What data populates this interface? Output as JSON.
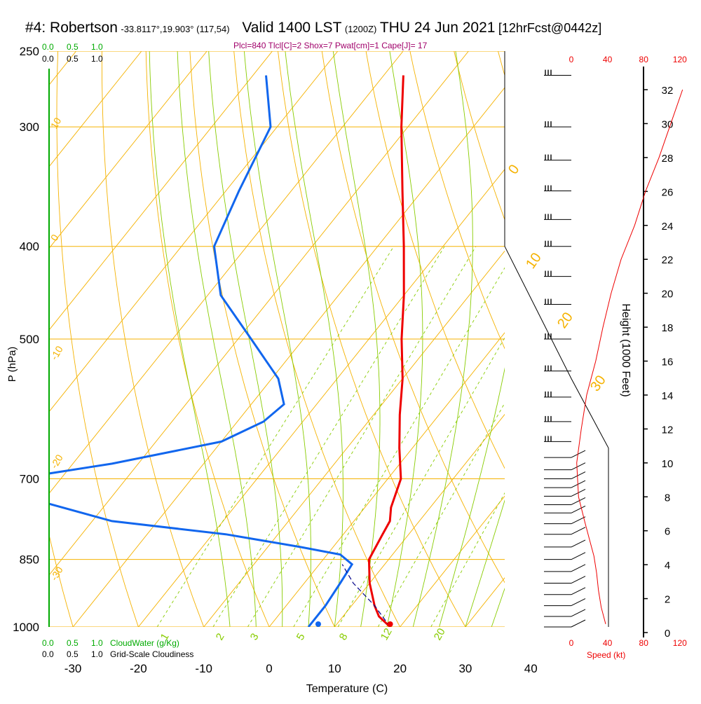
{
  "title": {
    "station": "#4: Robertson",
    "coords": "-33.8117°,19.903° (117,54)",
    "valid": "Valid 1400 LST",
    "utc": "(1200Z)",
    "date": "THU 24 Jun 2021",
    "forecast": "[12hrFcst@0442z]"
  },
  "indices": "Plcl=840 Tlcl[C]=2 Shox=7 Pwat[cm]=1 Cape[J]= 17",
  "colors": {
    "isotherm": "#f5b200",
    "mixing_ratio": "#88cc00",
    "temperature": "#ee0000",
    "dewpoint": "#1166ee",
    "cloudwater": "#00aa00",
    "parcel": "#000088",
    "title_indices": "#a0006a",
    "speed_scale": "#ee0000"
  },
  "chart_data": {
    "type": "skew-t",
    "xlabel": "Temperature (C)",
    "ylabel": "P (hPa)",
    "xlim": [
      -35,
      35
    ],
    "x_ticks": [
      "-30",
      "-20",
      "-10",
      "0",
      "10",
      "20",
      "30",
      "40"
    ],
    "pressure_ticks": [
      "250",
      "300",
      "400",
      "500",
      "700",
      "850",
      "1000"
    ],
    "pressure_levels": [
      250,
      300,
      400,
      500,
      700,
      850,
      1000
    ],
    "temperature_profile": [
      {
        "p": 1000,
        "t": 18.5
      },
      {
        "p": 975,
        "t": 15.5
      },
      {
        "p": 950,
        "t": 13.5
      },
      {
        "p": 900,
        "t": 10.0
      },
      {
        "p": 850,
        "t": 7.0
      },
      {
        "p": 800,
        "t": 6.0
      },
      {
        "p": 775,
        "t": 5.5
      },
      {
        "p": 750,
        "t": 4.0
      },
      {
        "p": 700,
        "t": 2.0
      },
      {
        "p": 650,
        "t": -2.0
      },
      {
        "p": 600,
        "t": -6.0
      },
      {
        "p": 550,
        "t": -10.0
      },
      {
        "p": 500,
        "t": -15.0
      },
      {
        "p": 450,
        "t": -20.0
      },
      {
        "p": 400,
        "t": -26.0
      },
      {
        "p": 350,
        "t": -33.0
      },
      {
        "p": 300,
        "t": -41.0
      },
      {
        "p": 265,
        "t": -47.0
      }
    ],
    "dewpoint_profile": [
      {
        "p": 1000,
        "t": 6.0
      },
      {
        "p": 950,
        "t": 6.0
      },
      {
        "p": 900,
        "t": 5.5
      },
      {
        "p": 860,
        "t": 5.0
      },
      {
        "p": 840,
        "t": 2.0
      },
      {
        "p": 825,
        "t": -5.0
      },
      {
        "p": 800,
        "t": -18.0
      },
      {
        "p": 775,
        "t": -37.0
      },
      {
        "p": 740,
        "t": -50.0
      },
      {
        "p": 715,
        "t": -58.0
      },
      {
        "p": 700,
        "t": -57.0
      },
      {
        "p": 675,
        "t": -44.0
      },
      {
        "p": 640,
        "t": -30.0
      },
      {
        "p": 610,
        "t": -26.0
      },
      {
        "p": 585,
        "t": -25.0
      },
      {
        "p": 550,
        "t": -29.0
      },
      {
        "p": 500,
        "t": -38.0
      },
      {
        "p": 450,
        "t": -48.0
      },
      {
        "p": 400,
        "t": -55.0
      },
      {
        "p": 350,
        "t": -58.0
      },
      {
        "p": 300,
        "t": -61.0
      },
      {
        "p": 265,
        "t": -68.0
      }
    ],
    "surface_dewpoint_marker": {
      "p": 1000,
      "t": 7.5
    },
    "parcel_path": [
      {
        "p": 1000,
        "t": 18.5
      },
      {
        "p": 950,
        "t": 13.5
      },
      {
        "p": 900,
        "t": 7.5
      },
      {
        "p": 860,
        "t": 3.5
      }
    ],
    "isotherm_labels": [
      "10",
      "0",
      "-10",
      "-20",
      "-30",
      "0",
      "10",
      "20",
      "30"
    ],
    "mixing_ratio_values": [
      1,
      2,
      3,
      5,
      8,
      12,
      20
    ],
    "mixing_ratio_labels": [
      "1",
      "2",
      "3",
      "5",
      "8",
      "12",
      "20"
    ],
    "cloudwater_scale": [
      "0.0",
      "0.5",
      "1.0"
    ],
    "cloudiness_scale": [
      "0.0",
      "0.5",
      "1.0"
    ],
    "cloudwater_label": "CloudWater (g/Kg)",
    "cloudiness_label": "Grid-Scale Cloudiness",
    "wind_speed_ticks": [
      "0",
      "40",
      "80",
      "120"
    ],
    "wind_speed_label": "Speed (kt)",
    "height_axis_label": "Height (1000 Feet)",
    "height_ticks": [
      "0",
      "2",
      "4",
      "6",
      "8",
      "10",
      "12",
      "14",
      "16",
      "18",
      "20",
      "22",
      "24",
      "26",
      "28",
      "30",
      "32"
    ],
    "height_values": [
      0,
      2,
      4,
      6,
      8,
      10,
      12,
      14,
      16,
      18,
      20,
      22,
      24,
      26,
      28,
      30,
      32
    ],
    "wind_speed_profile_kt": [
      {
        "h": 0.5,
        "s": 38
      },
      {
        "h": 1.5,
        "s": 33
      },
      {
        "h": 2.5,
        "s": 30
      },
      {
        "h": 3.5,
        "s": 28
      },
      {
        "h": 4.5,
        "s": 25
      },
      {
        "h": 5.5,
        "s": 20
      },
      {
        "h": 6.5,
        "s": 15
      },
      {
        "h": 8.0,
        "s": 8
      },
      {
        "h": 10.0,
        "s": 6
      },
      {
        "h": 12.0,
        "s": 11
      },
      {
        "h": 14.0,
        "s": 17
      },
      {
        "h": 16.0,
        "s": 27
      },
      {
        "h": 18.0,
        "s": 35
      },
      {
        "h": 20.0,
        "s": 44
      },
      {
        "h": 22.0,
        "s": 55
      },
      {
        "h": 24.0,
        "s": 70
      },
      {
        "h": 26.0,
        "s": 82
      },
      {
        "h": 28.0,
        "s": 97
      },
      {
        "h": 30.0,
        "s": 110
      },
      {
        "h": 32.0,
        "s": 123
      }
    ],
    "wind_barb_levels_hpa": [
      265,
      300,
      325,
      350,
      375,
      400,
      430,
      460,
      500,
      540,
      575,
      610,
      640,
      665,
      685,
      700,
      715,
      730,
      745,
      760,
      780,
      800,
      825,
      850,
      875,
      900,
      925,
      950,
      975,
      1000
    ]
  }
}
